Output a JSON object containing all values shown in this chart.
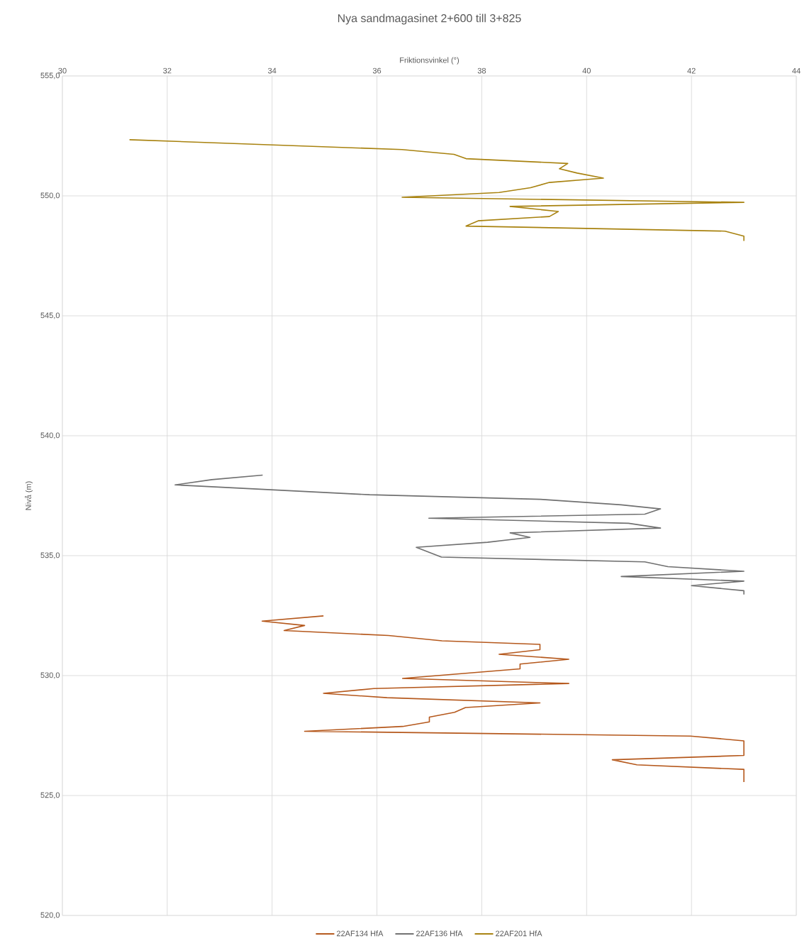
{
  "chart_data": {
    "type": "line",
    "title": "Nya sandmagasinet 2+600 till 3+825",
    "xlabel": "Friktionsvinkel (°)",
    "ylabel": "Nivå (m)",
    "xlim": [
      30,
      44
    ],
    "xticks": [
      30,
      32,
      34,
      36,
      38,
      40,
      42,
      44
    ],
    "ylim": [
      520,
      555
    ],
    "yticks": [
      {
        "value": 520,
        "label": "520,0"
      },
      {
        "value": 525,
        "label": "525,0"
      },
      {
        "value": 530,
        "label": "530,0"
      },
      {
        "value": 535,
        "label": "535,0"
      },
      {
        "value": 540,
        "label": "540,0"
      },
      {
        "value": 545,
        "label": "545,0"
      },
      {
        "value": 550,
        "label": "550,0"
      },
      {
        "value": 555,
        "label": "555,0"
      }
    ],
    "grid": true,
    "legend": "bottom",
    "series": [
      {
        "name": "22AF134 HfA",
        "color": "#b5581c",
        "x": [
          34.98,
          33.81,
          34.62,
          34.23,
          36.22,
          37.24,
          39.11,
          39.11,
          38.33,
          39.66,
          38.73,
          38.73,
          36.49,
          39.66,
          35.94,
          34.98,
          36.19,
          39.11,
          37.69,
          37.48,
          37.0,
          37.0,
          36.49,
          34.62,
          41.98,
          43.0,
          43.0,
          40.49,
          40.96,
          43.0,
          43.0
        ],
        "values": [
          532.49,
          532.27,
          532.09,
          531.88,
          531.67,
          531.45,
          531.3,
          531.08,
          530.89,
          530.68,
          530.48,
          530.28,
          529.88,
          529.67,
          529.46,
          529.26,
          529.08,
          528.86,
          528.67,
          528.47,
          528.27,
          528.07,
          527.88,
          527.68,
          527.48,
          527.28,
          526.67,
          526.49,
          526.28,
          526.09,
          525.56
        ]
      },
      {
        "name": "22AF136 HfA",
        "color": "#707070",
        "x": [
          33.82,
          32.85,
          32.15,
          35.86,
          39.12,
          40.66,
          41.41,
          41.11,
          36.99,
          40.8,
          41.41,
          38.54,
          38.92,
          38.11,
          36.75,
          37.23,
          41.11,
          41.55,
          43.0,
          40.66,
          43.0,
          42.0,
          43.0,
          43.0
        ],
        "values": [
          538.36,
          538.17,
          537.95,
          537.54,
          537.35,
          537.12,
          536.95,
          536.73,
          536.56,
          536.35,
          536.15,
          535.95,
          535.76,
          535.56,
          535.35,
          534.94,
          534.74,
          534.54,
          534.35,
          534.13,
          533.94,
          533.75,
          533.54,
          533.38
        ]
      },
      {
        "name": "22AF201 HfA",
        "color": "#a8820f",
        "x": [
          31.28,
          36.48,
          37.47,
          37.7,
          39.64,
          39.48,
          39.82,
          40.32,
          39.29,
          38.93,
          38.33,
          36.48,
          43.0,
          38.54,
          39.46,
          39.29,
          37.93,
          37.7,
          42.64,
          43.0,
          43.0
        ],
        "values": [
          552.34,
          551.93,
          551.73,
          551.55,
          551.35,
          551.13,
          550.95,
          550.74,
          550.56,
          550.34,
          550.14,
          549.94,
          549.73,
          549.56,
          549.35,
          549.14,
          548.96,
          548.74,
          548.53,
          548.32,
          548.12
        ]
      }
    ]
  }
}
